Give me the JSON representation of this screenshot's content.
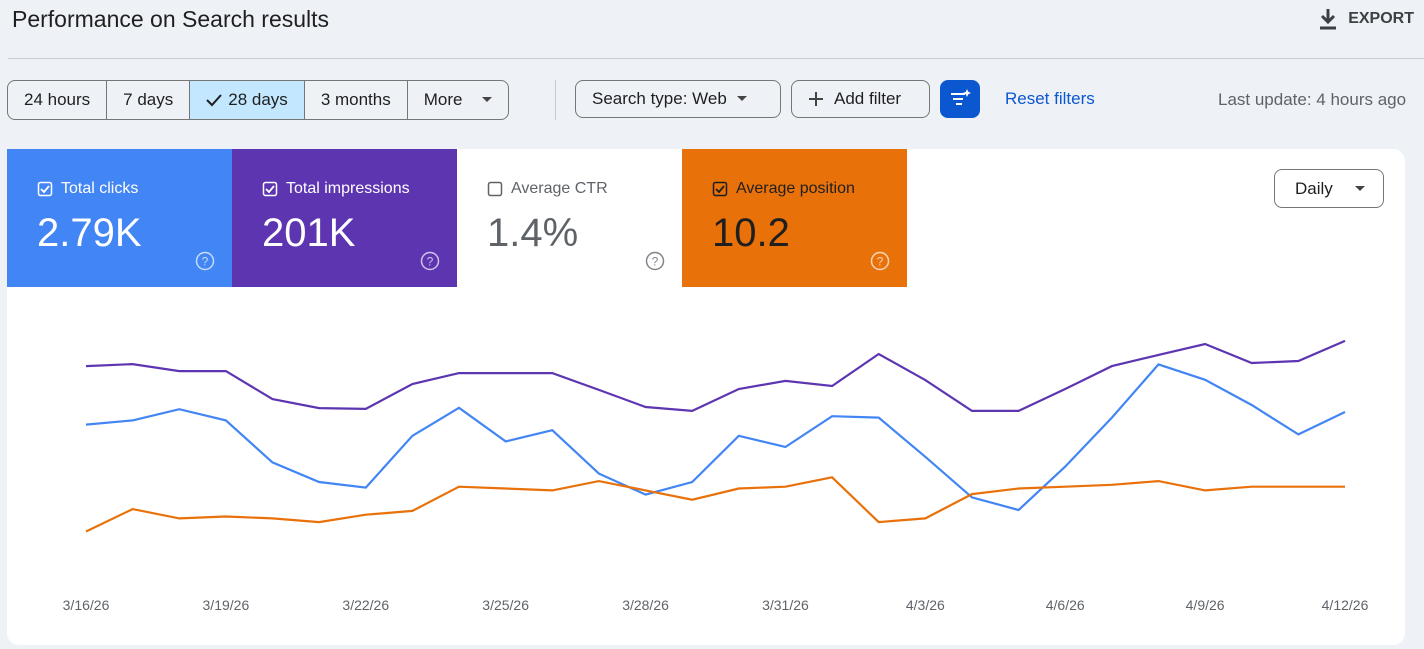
{
  "header": {
    "title": "Performance on Search results",
    "export": "EXPORT"
  },
  "toolbar": {
    "ranges": [
      "24 hours",
      "7 days",
      "28 days",
      "3 months",
      "More"
    ],
    "selected_range": 2,
    "search_type": "Search type: Web",
    "add_filter": "Add filter",
    "reset": "Reset filters",
    "last_update": "Last update: 4 hours ago"
  },
  "metrics": [
    {
      "label": "Total clicks",
      "value": "2.79K",
      "checked": true,
      "color": "#4285f4"
    },
    {
      "label": "Total impressions",
      "value": "201K",
      "checked": true,
      "color": "#5e35b1"
    },
    {
      "label": "Average CTR",
      "value": "1.4%",
      "checked": false
    },
    {
      "label": "Average position",
      "value": "10.2",
      "checked": true,
      "color": "#e8710a"
    }
  ],
  "granularity": "Daily",
  "chart_data": {
    "type": "line",
    "x": [
      "3/16/26",
      null,
      null,
      "3/19/26",
      null,
      null,
      "3/22/26",
      null,
      null,
      "3/25/26",
      null,
      null,
      "3/28/26",
      null,
      null,
      "3/31/26",
      null,
      null,
      "4/3/26",
      null,
      null,
      "4/6/26",
      null,
      null,
      "4/9/26",
      null,
      null,
      "4/12/26"
    ],
    "series": [
      {
        "color": "#4285f4",
        "ylim": [
          0,
          200
        ],
        "values": [
          111,
          114,
          122,
          114,
          84,
          70,
          66,
          103,
          123,
          99,
          107,
          76,
          61,
          70,
          103,
          95,
          117,
          116,
          88,
          59,
          50,
          81,
          116,
          154,
          143,
          125,
          104,
          120
        ]
      },
      {
        "color": "#5e35b1",
        "ylim": [
          0,
          10000
        ],
        "values": [
          7640,
          7710,
          7460,
          7460,
          6460,
          6140,
          6110,
          7000,
          7390,
          7390,
          7390,
          6790,
          6180,
          6040,
          6820,
          7110,
          6930,
          8070,
          7140,
          6040,
          6040,
          6820,
          7640,
          8040,
          8430,
          7750,
          7820,
          8540
        ]
      },
      {
        "color": "#e8710a",
        "ylim": [
          15,
          0
        ],
        "values": [
          12.4,
          11.2,
          11.7,
          11.6,
          11.7,
          11.9,
          11.5,
          11.3,
          10.0,
          10.1,
          10.2,
          9.7,
          10.2,
          10.7,
          10.1,
          10.0,
          9.5,
          11.9,
          11.7,
          10.4,
          10.1,
          10.0,
          9.9,
          9.7,
          10.2,
          10.0,
          10.0,
          10.0
        ]
      }
    ]
  }
}
